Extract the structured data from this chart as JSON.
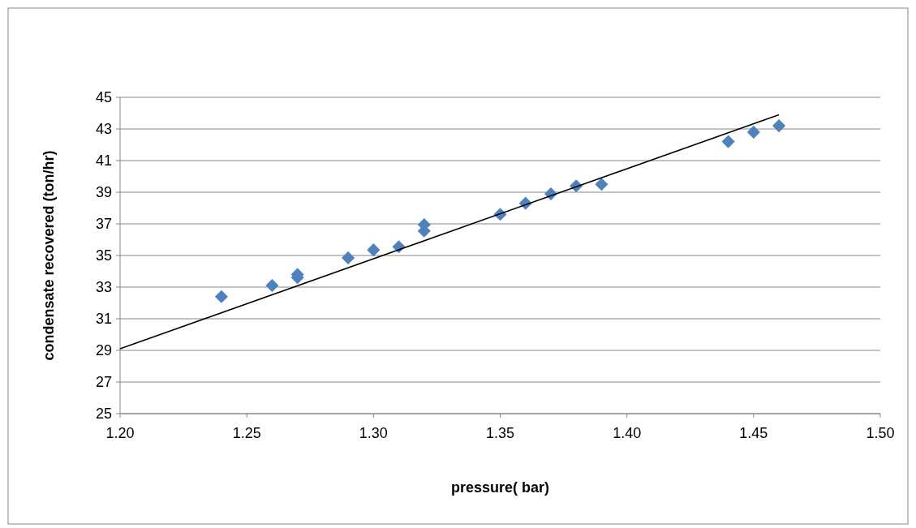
{
  "chart_data": {
    "type": "scatter",
    "xlabel": "pressure( bar)",
    "ylabel": "condensate recovered (ton/hr)",
    "xlim": [
      1.2,
      1.5
    ],
    "xticks": [
      {
        "value": 1.2,
        "label": "1.20"
      },
      {
        "value": 1.25,
        "label": "1.25"
      },
      {
        "value": 1.3,
        "label": "1.30"
      },
      {
        "value": 1.35,
        "label": "1.35"
      },
      {
        "value": 1.4,
        "label": "1.40"
      },
      {
        "value": 1.45,
        "label": "1.45"
      },
      {
        "value": 1.5,
        "label": "1.50"
      }
    ],
    "ylim": [
      25,
      45
    ],
    "yticks": [
      25,
      27,
      29,
      31,
      33,
      35,
      37,
      39,
      41,
      43,
      45
    ],
    "grid": "y",
    "marker": "diamond",
    "series": [
      {
        "color": "#4f81bd",
        "x": [
          1.24,
          1.26,
          1.27,
          1.27,
          1.29,
          1.3,
          1.31,
          1.32,
          1.32,
          1.35,
          1.36,
          1.37,
          1.38,
          1.39,
          1.44,
          1.45,
          1.46
        ],
        "values": [
          32.4,
          33.1,
          33.8,
          33.6,
          34.85,
          35.35,
          35.55,
          36.95,
          36.55,
          37.6,
          38.3,
          38.9,
          39.4,
          39.5,
          42.2,
          42.8,
          43.2
        ]
      },
      {
        "type": "line",
        "color": "#000000",
        "marker": "none",
        "x": [
          1.2,
          1.46
        ],
        "values": [
          29.1,
          43.9
        ]
      }
    ]
  }
}
